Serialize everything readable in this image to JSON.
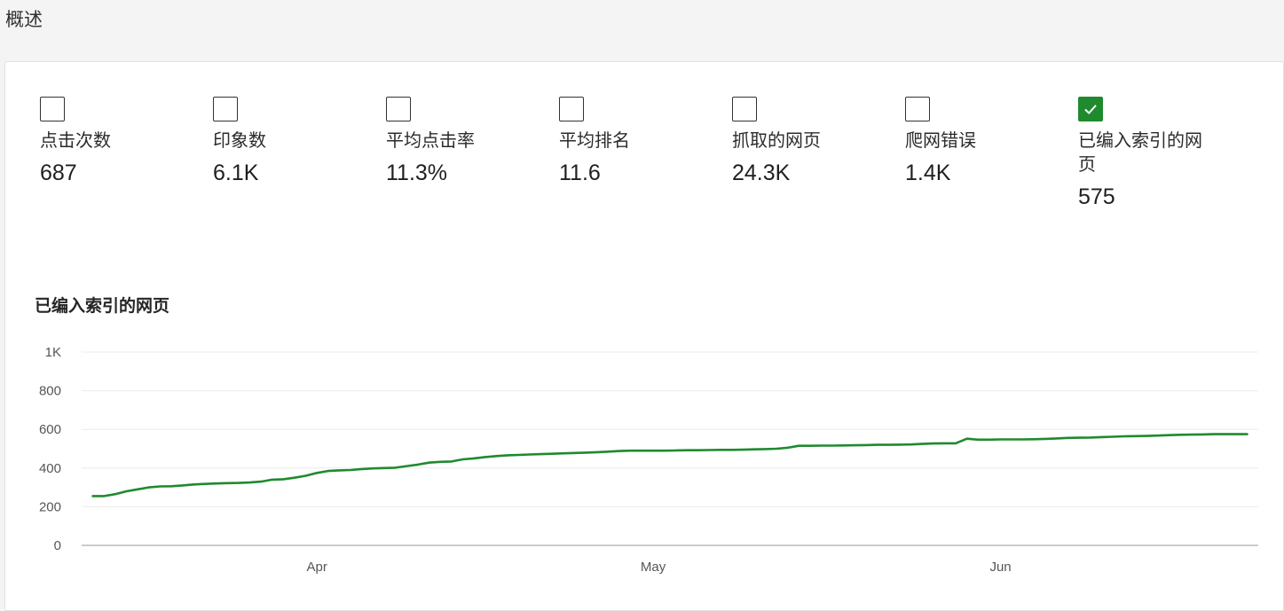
{
  "page": {
    "title": "概述"
  },
  "metrics": [
    {
      "label": "点击次数",
      "value": "687",
      "checked": false
    },
    {
      "label": "印象数",
      "value": "6.1K",
      "checked": false
    },
    {
      "label": "平均点击率",
      "value": "11.3%",
      "checked": false
    },
    {
      "label": "平均排名",
      "value": "11.6",
      "checked": false
    },
    {
      "label": "抓取的网页",
      "value": "24.3K",
      "checked": false
    },
    {
      "label": "爬网错误",
      "value": "1.4K",
      "checked": false
    },
    {
      "label": "已编入索引的网页",
      "value": "575",
      "checked": true
    }
  ],
  "colors": {
    "accent": "#1f8a2e",
    "line": "#1f8a2e",
    "grid": "#ececec"
  },
  "chart_data": {
    "type": "line",
    "title": "已编入索引的网页",
    "xlabel": "",
    "ylabel": "",
    "ylim": [
      0,
      1000
    ],
    "y_ticks": [
      {
        "value": 0,
        "label": "0"
      },
      {
        "value": 200,
        "label": "200"
      },
      {
        "value": 400,
        "label": "400"
      },
      {
        "value": 600,
        "label": "600"
      },
      {
        "value": 800,
        "label": "800"
      },
      {
        "value": 1000,
        "label": "1K"
      }
    ],
    "x_ticks": [
      {
        "value": "2019-04-01",
        "label": "Apr"
      },
      {
        "value": "2019-05-01",
        "label": "May"
      },
      {
        "value": "2019-06-01",
        "label": "Jun"
      }
    ],
    "xlim": [
      "2019-03-11",
      "2019-06-24"
    ],
    "series": [
      {
        "name": "",
        "points": [
          [
            "2019-03-12",
            255
          ],
          [
            "2019-03-13",
            255
          ],
          [
            "2019-03-14",
            265
          ],
          [
            "2019-03-15",
            280
          ],
          [
            "2019-03-16",
            290
          ],
          [
            "2019-03-17",
            300
          ],
          [
            "2019-03-18",
            305
          ],
          [
            "2019-03-19",
            306
          ],
          [
            "2019-03-20",
            310
          ],
          [
            "2019-03-21",
            315
          ],
          [
            "2019-03-22",
            318
          ],
          [
            "2019-03-23",
            320
          ],
          [
            "2019-03-24",
            322
          ],
          [
            "2019-03-25",
            323
          ],
          [
            "2019-03-26",
            325
          ],
          [
            "2019-03-27",
            330
          ],
          [
            "2019-03-28",
            340
          ],
          [
            "2019-03-29",
            342
          ],
          [
            "2019-03-30",
            350
          ],
          [
            "2019-03-31",
            360
          ],
          [
            "2019-04-01",
            375
          ],
          [
            "2019-04-02",
            385
          ],
          [
            "2019-04-03",
            388
          ],
          [
            "2019-04-04",
            390
          ],
          [
            "2019-04-05",
            395
          ],
          [
            "2019-04-06",
            398
          ],
          [
            "2019-04-07",
            400
          ],
          [
            "2019-04-08",
            402
          ],
          [
            "2019-04-09",
            410
          ],
          [
            "2019-04-10",
            418
          ],
          [
            "2019-04-11",
            428
          ],
          [
            "2019-04-12",
            432
          ],
          [
            "2019-04-13",
            434
          ],
          [
            "2019-04-14",
            445
          ],
          [
            "2019-04-15",
            450
          ],
          [
            "2019-04-16",
            457
          ],
          [
            "2019-04-17",
            462
          ],
          [
            "2019-04-18",
            466
          ],
          [
            "2019-04-19",
            468
          ],
          [
            "2019-04-20",
            470
          ],
          [
            "2019-04-21",
            472
          ],
          [
            "2019-04-22",
            474
          ],
          [
            "2019-04-23",
            476
          ],
          [
            "2019-04-24",
            478
          ],
          [
            "2019-04-25",
            480
          ],
          [
            "2019-04-26",
            482
          ],
          [
            "2019-04-27",
            485
          ],
          [
            "2019-04-28",
            488
          ],
          [
            "2019-04-29",
            490
          ],
          [
            "2019-04-30",
            490
          ],
          [
            "2019-05-01",
            490
          ],
          [
            "2019-05-02",
            490
          ],
          [
            "2019-05-03",
            491
          ],
          [
            "2019-05-04",
            492
          ],
          [
            "2019-05-05",
            492
          ],
          [
            "2019-05-06",
            493
          ],
          [
            "2019-05-07",
            494
          ],
          [
            "2019-05-08",
            494
          ],
          [
            "2019-05-09",
            495
          ],
          [
            "2019-05-10",
            497
          ],
          [
            "2019-05-11",
            498
          ],
          [
            "2019-05-12",
            500
          ],
          [
            "2019-05-13",
            505
          ],
          [
            "2019-05-14",
            515
          ],
          [
            "2019-05-15",
            515
          ],
          [
            "2019-05-16",
            516
          ],
          [
            "2019-05-17",
            516
          ],
          [
            "2019-05-18",
            517
          ],
          [
            "2019-05-19",
            518
          ],
          [
            "2019-05-20",
            519
          ],
          [
            "2019-05-21",
            520
          ],
          [
            "2019-05-22",
            520
          ],
          [
            "2019-05-23",
            521
          ],
          [
            "2019-05-24",
            522
          ],
          [
            "2019-05-25",
            525
          ],
          [
            "2019-05-26",
            527
          ],
          [
            "2019-05-27",
            528
          ],
          [
            "2019-05-28",
            528
          ],
          [
            "2019-05-29",
            552
          ],
          [
            "2019-05-30",
            547
          ],
          [
            "2019-05-31",
            547
          ],
          [
            "2019-06-01",
            548
          ],
          [
            "2019-06-02",
            548
          ],
          [
            "2019-06-03",
            548
          ],
          [
            "2019-06-04",
            549
          ],
          [
            "2019-06-05",
            551
          ],
          [
            "2019-06-06",
            553
          ],
          [
            "2019-06-07",
            556
          ],
          [
            "2019-06-08",
            557
          ],
          [
            "2019-06-09",
            558
          ],
          [
            "2019-06-10",
            560
          ],
          [
            "2019-06-11",
            562
          ],
          [
            "2019-06-12",
            564
          ],
          [
            "2019-06-13",
            565
          ],
          [
            "2019-06-14",
            566
          ],
          [
            "2019-06-15",
            568
          ],
          [
            "2019-06-16",
            570
          ],
          [
            "2019-06-17",
            572
          ],
          [
            "2019-06-18",
            573
          ],
          [
            "2019-06-19",
            574
          ],
          [
            "2019-06-20",
            575
          ],
          [
            "2019-06-21",
            575
          ],
          [
            "2019-06-22",
            575
          ],
          [
            "2019-06-23",
            575
          ]
        ]
      }
    ],
    "grid": true,
    "legend": "none"
  }
}
